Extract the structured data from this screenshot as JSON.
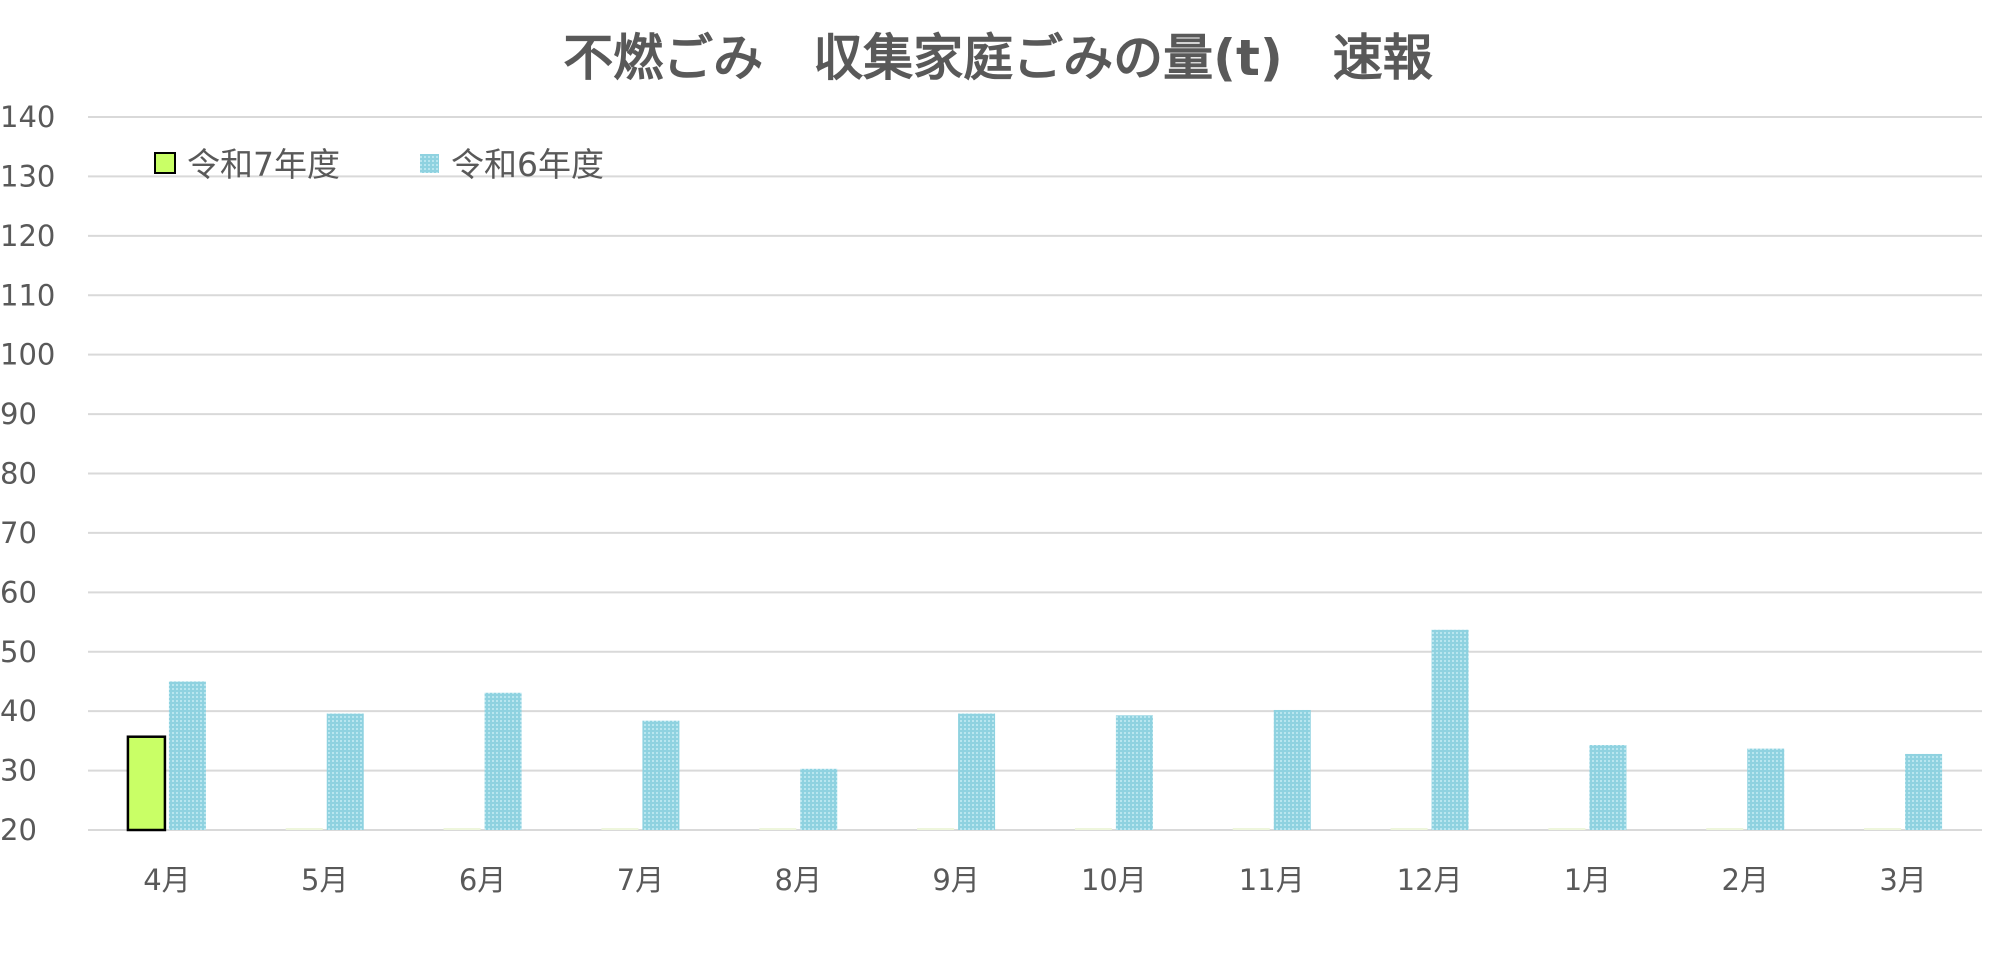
{
  "chart_data": {
    "type": "bar",
    "title": "不燃ごみ　収集家庭ごみの量(t)　速報",
    "categories": [
      "4月",
      "5月",
      "6月",
      "7月",
      "8月",
      "9月",
      "10月",
      "11月",
      "12月",
      "1月",
      "2月",
      "3月"
    ],
    "series": [
      {
        "name": "令和7年度",
        "values": [
          35.7,
          null,
          null,
          null,
          null,
          null,
          null,
          null,
          null,
          null,
          null,
          null
        ],
        "color": "#c9ff66"
      },
      {
        "name": "令和6年度",
        "values": [
          45.0,
          39.6,
          43.1,
          38.4,
          30.3,
          39.6,
          39.3,
          40.2,
          53.7,
          34.3,
          33.7,
          32.8
        ],
        "color": "#8fd2e0"
      }
    ],
    "yticks": [
      20,
      30,
      40,
      50,
      60,
      70,
      80,
      90,
      100,
      110,
      120,
      130,
      140
    ],
    "ylim": [
      20,
      140
    ],
    "grid": true,
    "legend_position": "top-left"
  }
}
